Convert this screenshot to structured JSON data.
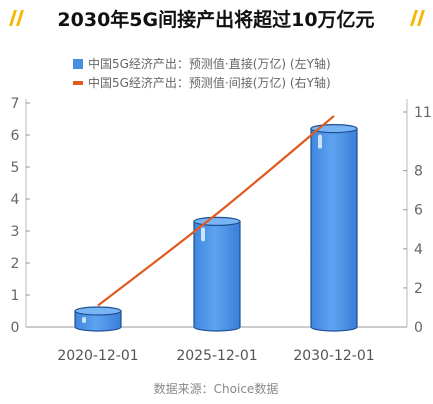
{
  "chart_data": {
    "type": "bar",
    "title": "2030年5G间接产出将超过10万亿元",
    "title_decoration": "////",
    "categories": [
      "2020-12-01",
      "2025-12-01",
      "2030-12-01"
    ],
    "series": [
      {
        "name": "中国5G经济产出：预测值·直接(万亿) (左Y轴)",
        "type": "bar",
        "axis": "left",
        "values": [
          0.5,
          3.3,
          6.2
        ],
        "color": "#4a90e2"
      },
      {
        "name": "中国5G经济产出：预测值·间接(万亿) (右Y轴)",
        "type": "line",
        "axis": "right",
        "values": [
          1.1,
          5.8,
          10.8
        ],
        "color": "#e05a1e"
      }
    ],
    "left_axis": {
      "ylim": [
        0,
        7
      ],
      "ticks": [
        "0",
        "1",
        "2",
        "3",
        "4",
        "5",
        "6",
        "7"
      ]
    },
    "right_axis": {
      "ylim": [
        0,
        11
      ],
      "ticks": [
        "0",
        "2",
        "4",
        "6",
        "8",
        "11"
      ],
      "tick_values": [
        0,
        2,
        4,
        6,
        8,
        11
      ]
    },
    "legend_position": "top-left",
    "source": "数据来源：Choice数据",
    "accent_color": "#f5b800",
    "grid": false
  }
}
